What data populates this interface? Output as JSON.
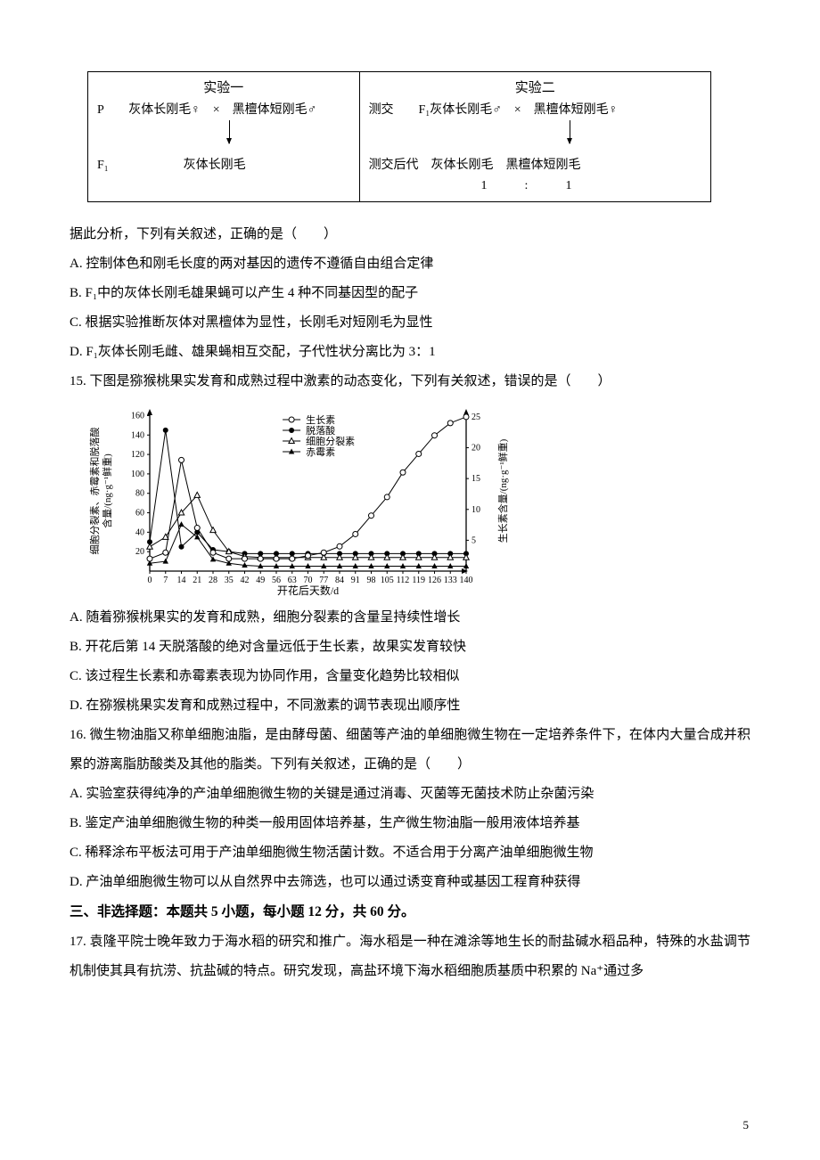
{
  "diagram": {
    "exp1": {
      "title": "实验一",
      "line_p": "P　　灰体长刚毛♀　×　黑檀体短刚毛♂",
      "line_f1_label": "F₁",
      "line_f1": "　　　　　　灰体长刚毛"
    },
    "exp2": {
      "title": "实验二",
      "line_cross": "测交　　F₁灰体长刚毛♂　×　黑檀体短刚毛♀",
      "line_offspring_label": "测交后代",
      "line_offspring": "　灰体长刚毛　黑檀体短刚毛",
      "line_ratio": "　　　　　　　　　1　　　:　　　1"
    }
  },
  "q14_stem": "据此分析，下列有关叙述，正确的是（　　）",
  "q14_A": "A. 控制体色和刚毛长度的两对基因的遗传不遵循自由组合定律",
  "q14_B": "B. F₁中的灰体长刚毛雄果蝇可以产生 4 种不同基因型的配子",
  "q14_C": "C. 根据实验推断灰体对黑檀体为显性，长刚毛对短刚毛为显性",
  "q14_D": "D. F₁灰体长刚毛雌、雄果蝇相互交配，子代性状分离比为 3：1",
  "q15_stem": "15. 下图是猕猴桃果实发育和成熟过程中激素的动态变化，下列有关叙述，错误的是（　　）",
  "q15_A": "A. 随着猕猴桃果实的发育和成熟，细胞分裂素的含量呈持续性增长",
  "q15_B": "B. 开花后第 14 天脱落酸的绝对含量远低于生长素，故果实发育较快",
  "q15_C": "C. 该过程生长素和赤霉素表现为协同作用，含量变化趋势比较相似",
  "q15_D": "D. 在猕猴桃果实发育和成熟过程中，不同激素的调节表现出顺序性",
  "q16_stem": "16. 微生物油脂又称单细胞油脂，是由酵母菌、细菌等产油的单细胞微生物在一定培养条件下，在体内大量合成并积累的游离脂肪酸类及其他的脂类。下列有关叙述，正确的是（　　）",
  "q16_A": "A. 实验室获得纯净的产油单细胞微生物的关键是通过消毒、灭菌等无菌技术防止杂菌污染",
  "q16_B": "B. 鉴定产油单细胞微生物的种类一般用固体培养基，生产微生物油脂一般用液体培养基",
  "q16_C": "C. 稀释涂布平板法可用于产油单细胞微生物活菌计数。不适合用于分离产油单细胞微生物",
  "q16_D": "D. 产油单细胞微生物可以从自然界中去筛选，也可以通过诱变育种或基因工程育种获得",
  "section3_title": "三、非选择题：本题共 5 小题，每小题 12 分，共 60 分。",
  "q17_stem": "17. 袁隆平院士晚年致力于海水稻的研究和推广。海水稻是一种在滩涂等地生长的耐盐碱水稻品种，特殊的水盐调节机制使其具有抗涝、抗盐碱的特点。研究发现，高盐环境下海水稻细胞质基质中积累的 Na⁺通过多",
  "page_number": "5",
  "chart": {
    "type": "line",
    "x_ticks": [
      0,
      7,
      14,
      21,
      28,
      35,
      42,
      49,
      56,
      63,
      70,
      77,
      84,
      91,
      98,
      105,
      112,
      119,
      126,
      133,
      140
    ],
    "x_tick_labels": [
      "0",
      "7",
      "14",
      "21",
      "28",
      "35",
      "42",
      "49",
      "56",
      "63",
      "70",
      "77",
      "84",
      "91",
      "98",
      "105",
      "112",
      "119",
      "126",
      "133",
      "140"
    ],
    "x_label": "开花后天数/d",
    "y_left_ticks": [
      20,
      40,
      60,
      80,
      100,
      120,
      140,
      160
    ],
    "y_left_label": "细胞分裂素、赤霉素和脱落酸\n含量/(ng·g⁻¹鲜重)",
    "y_right_ticks": [
      5,
      10,
      15,
      20,
      25
    ],
    "y_right_label": "生长素含量/(ng·g⁻¹鲜重)",
    "legend": {
      "auxin": "生长素",
      "aba": "脱落酸",
      "cytokinin": "细胞分裂素",
      "ga": "赤霉素"
    },
    "series": {
      "auxin": {
        "marker": "open-circle",
        "color": "#000000",
        "values_right_axis": true,
        "points": [
          [
            0,
            2
          ],
          [
            7,
            3
          ],
          [
            14,
            18
          ],
          [
            21,
            7
          ],
          [
            28,
            3
          ],
          [
            35,
            2
          ],
          [
            42,
            2
          ],
          [
            49,
            2
          ],
          [
            56,
            2
          ],
          [
            63,
            2
          ],
          [
            70,
            2.5
          ],
          [
            77,
            3
          ],
          [
            84,
            4
          ],
          [
            91,
            6
          ],
          [
            98,
            9
          ],
          [
            105,
            12
          ],
          [
            112,
            16
          ],
          [
            119,
            19
          ],
          [
            126,
            22
          ],
          [
            133,
            24
          ],
          [
            140,
            25
          ]
        ]
      },
      "aba": {
        "marker": "filled-circle",
        "color": "#000000",
        "values_right_axis": false,
        "points": [
          [
            0,
            30
          ],
          [
            7,
            145
          ],
          [
            14,
            25
          ],
          [
            21,
            40
          ],
          [
            28,
            22
          ],
          [
            35,
            20
          ],
          [
            42,
            18
          ],
          [
            49,
            18
          ],
          [
            56,
            18
          ],
          [
            63,
            18
          ],
          [
            70,
            18
          ],
          [
            77,
            18
          ],
          [
            84,
            18
          ],
          [
            91,
            18
          ],
          [
            98,
            18
          ],
          [
            105,
            18
          ],
          [
            112,
            18
          ],
          [
            119,
            18
          ],
          [
            126,
            18
          ],
          [
            133,
            18
          ],
          [
            140,
            18
          ]
        ]
      },
      "cytokinin": {
        "marker": "open-triangle",
        "color": "#000000",
        "values_right_axis": false,
        "points": [
          [
            0,
            25
          ],
          [
            7,
            35
          ],
          [
            14,
            60
          ],
          [
            21,
            78
          ],
          [
            28,
            42
          ],
          [
            35,
            20
          ],
          [
            42,
            15
          ],
          [
            49,
            14
          ],
          [
            56,
            14
          ],
          [
            63,
            14
          ],
          [
            70,
            14
          ],
          [
            77,
            14
          ],
          [
            84,
            14
          ],
          [
            91,
            14
          ],
          [
            98,
            14
          ],
          [
            105,
            14
          ],
          [
            112,
            14
          ],
          [
            119,
            14
          ],
          [
            126,
            14
          ],
          [
            133,
            14
          ],
          [
            140,
            14
          ]
        ]
      },
      "ga": {
        "marker": "filled-triangle",
        "color": "#000000",
        "values_right_axis": false,
        "points": [
          [
            0,
            8
          ],
          [
            7,
            10
          ],
          [
            14,
            48
          ],
          [
            21,
            35
          ],
          [
            28,
            12
          ],
          [
            35,
            8
          ],
          [
            42,
            6
          ],
          [
            49,
            5
          ],
          [
            56,
            5
          ],
          [
            63,
            5
          ],
          [
            70,
            5
          ],
          [
            77,
            5
          ],
          [
            84,
            5
          ],
          [
            91,
            5
          ],
          [
            98,
            5
          ],
          [
            105,
            5
          ],
          [
            112,
            5
          ],
          [
            119,
            5
          ],
          [
            126,
            5
          ],
          [
            133,
            5
          ],
          [
            140,
            5
          ]
        ]
      }
    },
    "plot_bg": "#ffffff",
    "axis_color": "#000000",
    "font_size_axis": 10
  }
}
